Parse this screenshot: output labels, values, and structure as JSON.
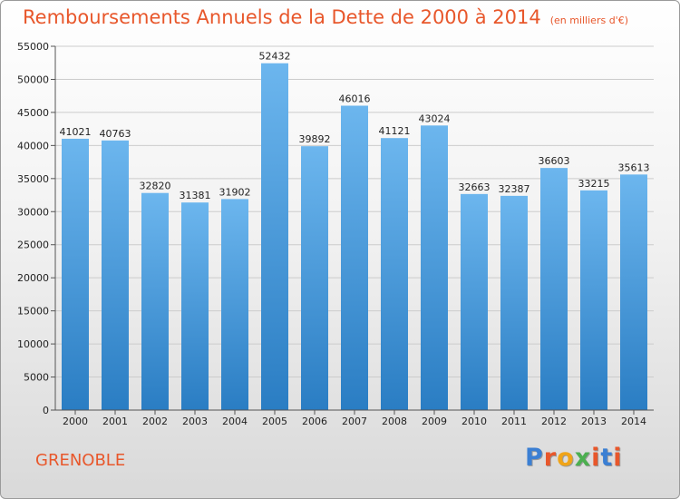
{
  "title": "Remboursements Annuels de la Dette de 2000 à 2014",
  "title_unit": "(en milliers d'€)",
  "city": "GRENOBLE",
  "logo": {
    "text": "Proxiti",
    "colors": [
      "#3b7fd3",
      "#e8572b",
      "#f0a418",
      "#4caf50",
      "#e8572b",
      "#3b7fd3",
      "#e8572b"
    ]
  },
  "colors": {
    "bar_light": "#6cb6ee",
    "bar_dark": "#2a7dc3",
    "title": "#e8572b",
    "grid": "#cccccc"
  },
  "chart_data": {
    "type": "bar",
    "categories": [
      "2000",
      "2001",
      "2002",
      "2003",
      "2004",
      "2005",
      "2006",
      "2007",
      "2008",
      "2009",
      "2010",
      "2011",
      "2012",
      "2013",
      "2014"
    ],
    "values": [
      41021,
      40763,
      32820,
      31381,
      31902,
      52432,
      39892,
      46016,
      41121,
      43024,
      32663,
      32387,
      36603,
      33215,
      35613
    ],
    "yticks": [
      0,
      5000,
      10000,
      15000,
      20000,
      25000,
      30000,
      35000,
      40000,
      45000,
      50000,
      55000
    ],
    "ylim": [
      0,
      55000
    ],
    "grid": true,
    "data_labels": true
  }
}
